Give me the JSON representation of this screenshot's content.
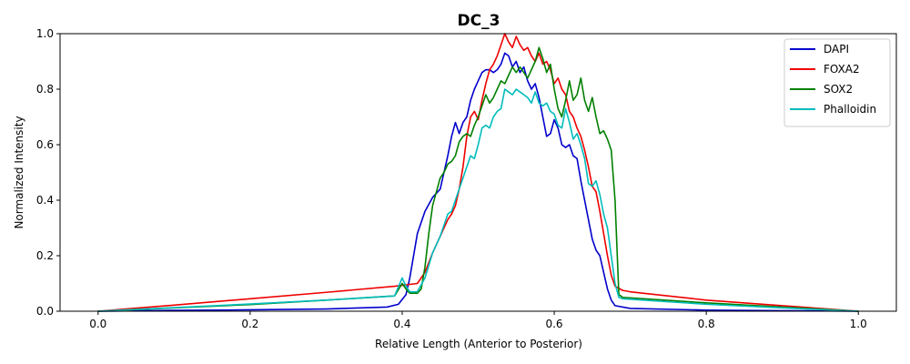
{
  "chart_data": {
    "type": "line",
    "title": "DC_3",
    "xlabel": "Relative Length (Anterior to Posterior)",
    "ylabel": "Normalized Intensity",
    "xlim": [
      -0.05,
      1.05
    ],
    "ylim": [
      0.0,
      1.0
    ],
    "xticks": [
      "0.0",
      "0.2",
      "0.4",
      "0.6",
      "0.8",
      "1.0"
    ],
    "yticks": [
      "0.0",
      "0.2",
      "0.4",
      "0.6",
      "0.8",
      "1.0"
    ],
    "grid": false,
    "legend_position": "top-right",
    "series": [
      {
        "name": "DAPI",
        "color": "#0000cc",
        "points": [
          [
            0.0,
            0.0
          ],
          [
            0.1,
            0.003
          ],
          [
            0.2,
            0.005
          ],
          [
            0.3,
            0.008
          ],
          [
            0.38,
            0.015
          ],
          [
            0.395,
            0.025
          ],
          [
            0.405,
            0.06
          ],
          [
            0.41,
            0.12
          ],
          [
            0.415,
            0.2
          ],
          [
            0.42,
            0.28
          ],
          [
            0.43,
            0.36
          ],
          [
            0.44,
            0.41
          ],
          [
            0.45,
            0.44
          ],
          [
            0.455,
            0.5
          ],
          [
            0.46,
            0.56
          ],
          [
            0.465,
            0.63
          ],
          [
            0.47,
            0.68
          ],
          [
            0.475,
            0.64
          ],
          [
            0.48,
            0.68
          ],
          [
            0.485,
            0.7
          ],
          [
            0.49,
            0.76
          ],
          [
            0.495,
            0.8
          ],
          [
            0.5,
            0.83
          ],
          [
            0.505,
            0.86
          ],
          [
            0.51,
            0.87
          ],
          [
            0.515,
            0.87
          ],
          [
            0.52,
            0.86
          ],
          [
            0.525,
            0.87
          ],
          [
            0.53,
            0.89
          ],
          [
            0.535,
            0.93
          ],
          [
            0.54,
            0.92
          ],
          [
            0.545,
            0.88
          ],
          [
            0.55,
            0.9
          ],
          [
            0.555,
            0.86
          ],
          [
            0.56,
            0.88
          ],
          [
            0.565,
            0.83
          ],
          [
            0.57,
            0.8
          ],
          [
            0.575,
            0.82
          ],
          [
            0.58,
            0.77
          ],
          [
            0.585,
            0.7
          ],
          [
            0.59,
            0.63
          ],
          [
            0.595,
            0.64
          ],
          [
            0.6,
            0.69
          ],
          [
            0.605,
            0.66
          ],
          [
            0.61,
            0.6
          ],
          [
            0.615,
            0.59
          ],
          [
            0.62,
            0.6
          ],
          [
            0.625,
            0.56
          ],
          [
            0.63,
            0.55
          ],
          [
            0.635,
            0.47
          ],
          [
            0.64,
            0.4
          ],
          [
            0.645,
            0.33
          ],
          [
            0.65,
            0.26
          ],
          [
            0.655,
            0.22
          ],
          [
            0.66,
            0.2
          ],
          [
            0.665,
            0.14
          ],
          [
            0.67,
            0.08
          ],
          [
            0.675,
            0.04
          ],
          [
            0.68,
            0.02
          ],
          [
            0.7,
            0.01
          ],
          [
            0.8,
            0.004
          ],
          [
            0.9,
            0.002
          ],
          [
            1.0,
            0.0
          ]
        ]
      },
      {
        "name": "FOXA2",
        "color": "#ee0000",
        "points": [
          [
            0.0,
            0.0
          ],
          [
            0.1,
            0.022
          ],
          [
            0.2,
            0.045
          ],
          [
            0.3,
            0.068
          ],
          [
            0.39,
            0.09
          ],
          [
            0.42,
            0.1
          ],
          [
            0.43,
            0.14
          ],
          [
            0.44,
            0.21
          ],
          [
            0.45,
            0.27
          ],
          [
            0.455,
            0.3
          ],
          [
            0.46,
            0.33
          ],
          [
            0.465,
            0.35
          ],
          [
            0.47,
            0.38
          ],
          [
            0.475,
            0.44
          ],
          [
            0.48,
            0.52
          ],
          [
            0.485,
            0.63
          ],
          [
            0.49,
            0.7
          ],
          [
            0.495,
            0.72
          ],
          [
            0.5,
            0.69
          ],
          [
            0.505,
            0.76
          ],
          [
            0.51,
            0.82
          ],
          [
            0.515,
            0.87
          ],
          [
            0.52,
            0.89
          ],
          [
            0.525,
            0.92
          ],
          [
            0.53,
            0.96
          ],
          [
            0.535,
            1.0
          ],
          [
            0.54,
            0.97
          ],
          [
            0.545,
            0.95
          ],
          [
            0.55,
            0.99
          ],
          [
            0.555,
            0.96
          ],
          [
            0.56,
            0.94
          ],
          [
            0.565,
            0.95
          ],
          [
            0.57,
            0.92
          ],
          [
            0.575,
            0.9
          ],
          [
            0.58,
            0.93
          ],
          [
            0.585,
            0.89
          ],
          [
            0.59,
            0.9
          ],
          [
            0.595,
            0.87
          ],
          [
            0.6,
            0.82
          ],
          [
            0.605,
            0.84
          ],
          [
            0.61,
            0.8
          ],
          [
            0.615,
            0.78
          ],
          [
            0.62,
            0.72
          ],
          [
            0.625,
            0.7
          ],
          [
            0.63,
            0.66
          ],
          [
            0.635,
            0.63
          ],
          [
            0.64,
            0.58
          ],
          [
            0.645,
            0.52
          ],
          [
            0.65,
            0.45
          ],
          [
            0.655,
            0.43
          ],
          [
            0.66,
            0.36
          ],
          [
            0.665,
            0.28
          ],
          [
            0.67,
            0.2
          ],
          [
            0.675,
            0.13
          ],
          [
            0.68,
            0.09
          ],
          [
            0.69,
            0.075
          ],
          [
            0.7,
            0.07
          ],
          [
            0.8,
            0.04
          ],
          [
            0.9,
            0.02
          ],
          [
            1.0,
            0.0
          ]
        ]
      },
      {
        "name": "SOX2",
        "color": "#008000",
        "points": [
          [
            0.0,
            0.0
          ],
          [
            0.1,
            0.012
          ],
          [
            0.2,
            0.024
          ],
          [
            0.3,
            0.04
          ],
          [
            0.39,
            0.055
          ],
          [
            0.4,
            0.1
          ],
          [
            0.405,
            0.08
          ],
          [
            0.41,
            0.065
          ],
          [
            0.42,
            0.065
          ],
          [
            0.425,
            0.08
          ],
          [
            0.43,
            0.16
          ],
          [
            0.435,
            0.28
          ],
          [
            0.44,
            0.38
          ],
          [
            0.445,
            0.43
          ],
          [
            0.45,
            0.48
          ],
          [
            0.455,
            0.5
          ],
          [
            0.46,
            0.53
          ],
          [
            0.465,
            0.54
          ],
          [
            0.47,
            0.56
          ],
          [
            0.475,
            0.61
          ],
          [
            0.48,
            0.63
          ],
          [
            0.485,
            0.64
          ],
          [
            0.49,
            0.63
          ],
          [
            0.495,
            0.67
          ],
          [
            0.5,
            0.7
          ],
          [
            0.505,
            0.74
          ],
          [
            0.51,
            0.78
          ],
          [
            0.515,
            0.75
          ],
          [
            0.52,
            0.77
          ],
          [
            0.525,
            0.8
          ],
          [
            0.53,
            0.83
          ],
          [
            0.535,
            0.82
          ],
          [
            0.54,
            0.85
          ],
          [
            0.545,
            0.88
          ],
          [
            0.55,
            0.86
          ],
          [
            0.555,
            0.88
          ],
          [
            0.56,
            0.86
          ],
          [
            0.565,
            0.84
          ],
          [
            0.57,
            0.87
          ],
          [
            0.575,
            0.9
          ],
          [
            0.58,
            0.95
          ],
          [
            0.585,
            0.91
          ],
          [
            0.59,
            0.86
          ],
          [
            0.595,
            0.89
          ],
          [
            0.6,
            0.8
          ],
          [
            0.605,
            0.73
          ],
          [
            0.61,
            0.7
          ],
          [
            0.615,
            0.76
          ],
          [
            0.62,
            0.83
          ],
          [
            0.625,
            0.76
          ],
          [
            0.63,
            0.78
          ],
          [
            0.635,
            0.84
          ],
          [
            0.64,
            0.76
          ],
          [
            0.645,
            0.72
          ],
          [
            0.65,
            0.77
          ],
          [
            0.655,
            0.7
          ],
          [
            0.66,
            0.64
          ],
          [
            0.665,
            0.65
          ],
          [
            0.67,
            0.62
          ],
          [
            0.675,
            0.58
          ],
          [
            0.68,
            0.4
          ],
          [
            0.685,
            0.06
          ],
          [
            0.69,
            0.05
          ],
          [
            0.8,
            0.03
          ],
          [
            0.9,
            0.015
          ],
          [
            1.0,
            0.0
          ]
        ]
      },
      {
        "name": "Phalloidin",
        "color": "#00bcbc",
        "points": [
          [
            0.0,
            0.0
          ],
          [
            0.1,
            0.013
          ],
          [
            0.2,
            0.026
          ],
          [
            0.3,
            0.04
          ],
          [
            0.39,
            0.055
          ],
          [
            0.4,
            0.12
          ],
          [
            0.405,
            0.09
          ],
          [
            0.41,
            0.07
          ],
          [
            0.42,
            0.07
          ],
          [
            0.43,
            0.12
          ],
          [
            0.44,
            0.21
          ],
          [
            0.45,
            0.27
          ],
          [
            0.455,
            0.31
          ],
          [
            0.46,
            0.35
          ],
          [
            0.465,
            0.36
          ],
          [
            0.47,
            0.4
          ],
          [
            0.475,
            0.44
          ],
          [
            0.48,
            0.48
          ],
          [
            0.485,
            0.52
          ],
          [
            0.49,
            0.56
          ],
          [
            0.495,
            0.55
          ],
          [
            0.5,
            0.6
          ],
          [
            0.505,
            0.66
          ],
          [
            0.51,
            0.67
          ],
          [
            0.515,
            0.66
          ],
          [
            0.52,
            0.7
          ],
          [
            0.525,
            0.72
          ],
          [
            0.53,
            0.73
          ],
          [
            0.535,
            0.8
          ],
          [
            0.54,
            0.79
          ],
          [
            0.545,
            0.78
          ],
          [
            0.55,
            0.8
          ],
          [
            0.555,
            0.79
          ],
          [
            0.56,
            0.78
          ],
          [
            0.565,
            0.77
          ],
          [
            0.57,
            0.75
          ],
          [
            0.575,
            0.79
          ],
          [
            0.58,
            0.75
          ],
          [
            0.585,
            0.74
          ],
          [
            0.59,
            0.75
          ],
          [
            0.595,
            0.72
          ],
          [
            0.6,
            0.71
          ],
          [
            0.605,
            0.67
          ],
          [
            0.61,
            0.66
          ],
          [
            0.615,
            0.73
          ],
          [
            0.62,
            0.68
          ],
          [
            0.625,
            0.62
          ],
          [
            0.63,
            0.64
          ],
          [
            0.635,
            0.6
          ],
          [
            0.64,
            0.55
          ],
          [
            0.645,
            0.46
          ],
          [
            0.65,
            0.45
          ],
          [
            0.655,
            0.47
          ],
          [
            0.66,
            0.42
          ],
          [
            0.665,
            0.35
          ],
          [
            0.67,
            0.3
          ],
          [
            0.675,
            0.2
          ],
          [
            0.68,
            0.1
          ],
          [
            0.685,
            0.05
          ],
          [
            0.69,
            0.045
          ],
          [
            0.8,
            0.025
          ],
          [
            0.9,
            0.012
          ],
          [
            1.0,
            0.0
          ]
        ]
      }
    ]
  }
}
